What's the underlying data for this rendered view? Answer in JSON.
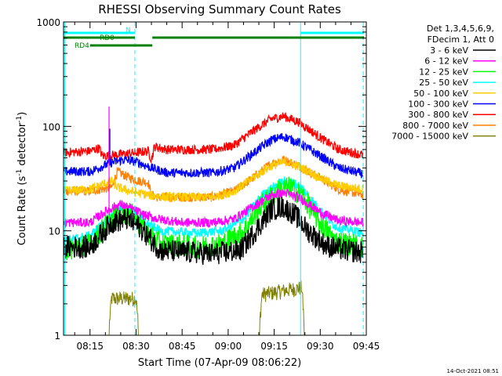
{
  "chart_data": {
    "type": "line",
    "title": "RHESSI Observing Summary Count Rates",
    "xlabel": "Start Time (07-Apr-09 08:06:22)",
    "ylabel_main": "Count Rate (s",
    "ylabel_sup1": "-1",
    "ylabel_mid": " detector",
    "ylabel_sup2": "-1",
    "ylabel_end": ")",
    "y_scale": "log",
    "ylim": [
      1,
      1000
    ],
    "xlim_minutes": [
      6.37,
      105.0
    ],
    "x_ticks": [
      {
        "minute": 15,
        "label": "08:15"
      },
      {
        "minute": 30,
        "label": "08:30"
      },
      {
        "minute": 45,
        "label": "08:45"
      },
      {
        "minute": 60,
        "label": "09:00"
      },
      {
        "minute": 75,
        "label": "09:15"
      },
      {
        "minute": 90,
        "label": "09:30"
      },
      {
        "minute": 105,
        "label": "09:45"
      }
    ],
    "y_ticks": [
      {
        "value": 1,
        "label": "1"
      },
      {
        "value": 10,
        "label": "10"
      },
      {
        "value": 100,
        "label": "100"
      },
      {
        "value": 1000,
        "label": "1000"
      }
    ],
    "legend_header": [
      "Det 1,3,4,5,6,9,",
      "FDecim 1, Att 0"
    ],
    "timestamp": "14-Oct-2021 08:51",
    "series": [
      {
        "name": "3 - 6 keV",
        "color": "#000000",
        "points": [
          [
            6.4,
            7.0
          ],
          [
            15,
            7.0
          ],
          [
            22,
            12
          ],
          [
            27,
            13
          ],
          [
            31,
            11
          ],
          [
            38,
            6.5
          ],
          [
            55,
            6.0
          ],
          [
            64,
            6.5
          ],
          [
            70,
            11
          ],
          [
            74,
            16
          ],
          [
            78,
            17
          ],
          [
            82,
            14
          ],
          [
            86,
            10
          ],
          [
            92,
            7.2
          ],
          [
            98,
            6.5
          ],
          [
            104,
            6.2
          ]
        ]
      },
      {
        "name": "6 - 12 keV",
        "color": "#ff00ff",
        "points": [
          [
            6.4,
            12
          ],
          [
            15,
            12
          ],
          [
            21,
            16
          ],
          [
            25,
            18
          ],
          [
            29,
            16
          ],
          [
            33,
            14
          ],
          [
            37,
            13
          ],
          [
            45,
            12
          ],
          [
            55,
            12
          ],
          [
            62,
            13
          ],
          [
            68,
            17
          ],
          [
            74,
            22
          ],
          [
            79,
            23
          ],
          [
            84,
            20
          ],
          [
            90,
            15
          ],
          [
            96,
            12.5
          ],
          [
            104,
            12
          ]
        ]
      },
      {
        "name": "12 - 25 keV",
        "color": "#00ff00",
        "points": [
          [
            6.4,
            6.5
          ],
          [
            15,
            7.5
          ],
          [
            22,
            13
          ],
          [
            26,
            15
          ],
          [
            29,
            14
          ],
          [
            33,
            10
          ],
          [
            38,
            7.5
          ],
          [
            50,
            7
          ],
          [
            58,
            7.5
          ],
          [
            65,
            10
          ],
          [
            71,
            18
          ],
          [
            77,
            25
          ],
          [
            80,
            26
          ],
          [
            84,
            22
          ],
          [
            89,
            13
          ],
          [
            95,
            8
          ],
          [
            104,
            7
          ]
        ]
      },
      {
        "name": "25 - 50 keV",
        "color": "#00ffff",
        "points": [
          [
            6.4,
            8
          ],
          [
            15,
            9
          ],
          [
            22,
            14
          ],
          [
            26,
            17
          ],
          [
            29,
            16
          ],
          [
            33,
            12
          ],
          [
            38,
            10
          ],
          [
            50,
            9.5
          ],
          [
            58,
            10
          ],
          [
            65,
            13
          ],
          [
            71,
            22
          ],
          [
            77,
            29
          ],
          [
            80,
            30
          ],
          [
            84,
            26
          ],
          [
            89,
            17
          ],
          [
            95,
            11
          ],
          [
            104,
            9.5
          ]
        ]
      },
      {
        "name": "50 - 100 keV",
        "color": "#ffcc00",
        "points": [
          [
            6.4,
            24
          ],
          [
            15,
            25
          ],
          [
            22,
            30
          ],
          [
            24,
            26
          ],
          [
            28,
            24
          ],
          [
            34,
            22
          ],
          [
            40,
            21
          ],
          [
            55,
            21
          ],
          [
            62,
            24
          ],
          [
            68,
            32
          ],
          [
            74,
            42
          ],
          [
            79,
            46
          ],
          [
            84,
            40
          ],
          [
            90,
            32
          ],
          [
            96,
            27
          ],
          [
            104,
            25
          ]
        ]
      },
      {
        "name": "100 - 300 keV",
        "color": "#0000ff",
        "points": [
          [
            6.4,
            37
          ],
          [
            15,
            37
          ],
          [
            22,
            45
          ],
          [
            26,
            48
          ],
          [
            30,
            46
          ],
          [
            35,
            40
          ],
          [
            40,
            36
          ],
          [
            55,
            36
          ],
          [
            62,
            40
          ],
          [
            68,
            55
          ],
          [
            74,
            74
          ],
          [
            78,
            80
          ],
          [
            83,
            70
          ],
          [
            90,
            52
          ],
          [
            96,
            40
          ],
          [
            104,
            35
          ]
        ]
      },
      {
        "name": "300 - 800 keV",
        "color": "#ff0000",
        "points": [
          [
            6.4,
            56
          ],
          [
            15,
            58
          ],
          [
            18,
            62
          ],
          [
            19,
            52
          ],
          [
            25,
            54
          ],
          [
            30,
            56
          ],
          [
            34,
            58
          ],
          [
            35,
            48
          ],
          [
            36,
            64
          ],
          [
            40,
            60
          ],
          [
            55,
            60
          ],
          [
            62,
            66
          ],
          [
            68,
            90
          ],
          [
            74,
            118
          ],
          [
            78,
            125
          ],
          [
            83,
            110
          ],
          [
            90,
            78
          ],
          [
            96,
            60
          ],
          [
            104,
            53
          ]
        ]
      },
      {
        "name": "800 - 7000 keV",
        "color": "#ff8000",
        "points": [
          [
            6.4,
            24
          ],
          [
            15,
            24
          ],
          [
            22,
            26
          ],
          [
            24,
            37
          ],
          [
            27,
            33
          ],
          [
            31,
            30
          ],
          [
            34,
            29
          ],
          [
            35,
            22
          ],
          [
            37,
            21
          ],
          [
            55,
            21
          ],
          [
            62,
            24
          ],
          [
            68,
            32
          ],
          [
            74,
            44
          ],
          [
            78,
            48
          ],
          [
            83,
            42
          ],
          [
            90,
            32
          ],
          [
            96,
            25
          ],
          [
            104,
            22
          ]
        ]
      },
      {
        "name": "7000 - 15000 keV",
        "color": "#808000",
        "points": [
          [
            6.4,
            1
          ],
          [
            21,
            1
          ],
          [
            22,
            2.2
          ],
          [
            30,
            2.2
          ],
          [
            31,
            1
          ],
          [
            70,
            1
          ],
          [
            71,
            2.4
          ],
          [
            84,
            2.8
          ],
          [
            85,
            1
          ],
          [
            104,
            1
          ]
        ]
      }
    ],
    "spike_event": {
      "minute": 21.2,
      "peak": 155,
      "series_color": "#ff00ff"
    },
    "annotations": [
      {
        "text": "N",
        "color": "#00ffff"
      },
      {
        "text": "RD0",
        "color": "#008000"
      },
      {
        "text": "RD4",
        "color": "#008000"
      }
    ],
    "night_bars": [
      [
        6.4,
        29.7
      ],
      [
        83.5,
        104.3
      ]
    ],
    "saa_bar_top": [
      [
        35.3,
        104.3
      ]
    ],
    "rd0_bar": [
      [
        6.4,
        29.6
      ]
    ],
    "rd4_bar": [
      [
        15,
        35.3
      ]
    ],
    "vertical_lines": [
      {
        "minute": 6.8,
        "style": "solid"
      },
      {
        "minute": 29.6,
        "style": "dashed"
      },
      {
        "minute": 83.6,
        "style": "solid"
      },
      {
        "minute": 104.0,
        "style": "dashed"
      }
    ]
  }
}
